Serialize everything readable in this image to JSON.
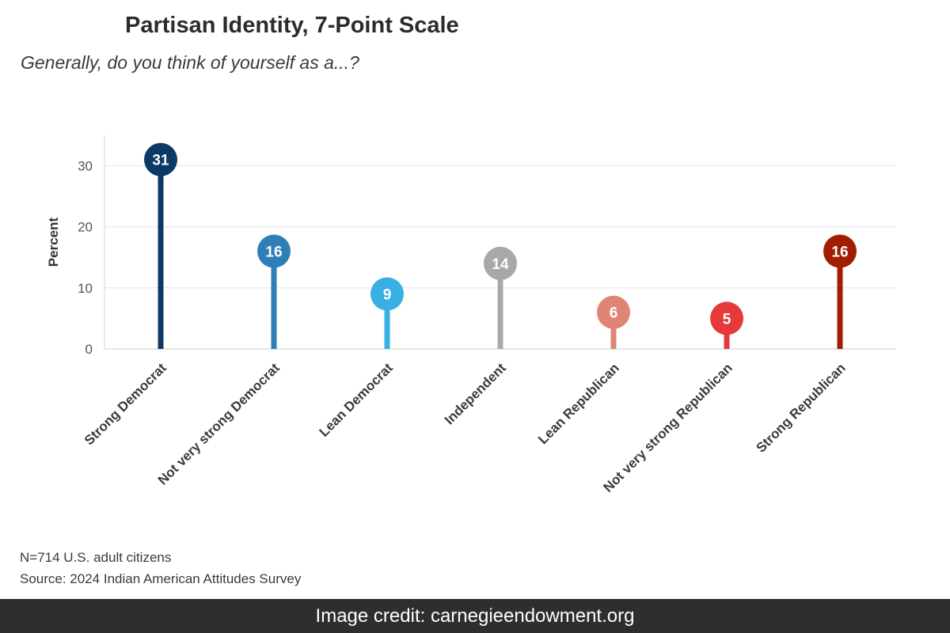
{
  "chart_data": {
    "type": "lollipop",
    "title": "Partisan Identity, 7-Point Scale",
    "subtitle": "Generally, do you think of yourself as a...?",
    "ylabel": "Percent",
    "xlabel": "",
    "ylim": [
      0,
      35
    ],
    "yticks": [
      0,
      10,
      20,
      30
    ],
    "grid": true,
    "categories": [
      "Strong Democrat",
      "Not very strong Democrat",
      "Lean Democrat",
      "Independent",
      "Lean Republican",
      "Not very strong Republican",
      "Strong Republican"
    ],
    "values": [
      31,
      16,
      9,
      14,
      6,
      5,
      16
    ],
    "colors": [
      "#0b3a66",
      "#2e7fb8",
      "#38b0e3",
      "#a8a8ab",
      "#e08576",
      "#e63a3a",
      "#a11e00"
    ]
  },
  "footnotes": {
    "sample": "N=714 U.S. adult citizens",
    "source": "Source: 2024 Indian American Attitudes Survey"
  },
  "credit": "Image credit: carnegieendowment.org"
}
